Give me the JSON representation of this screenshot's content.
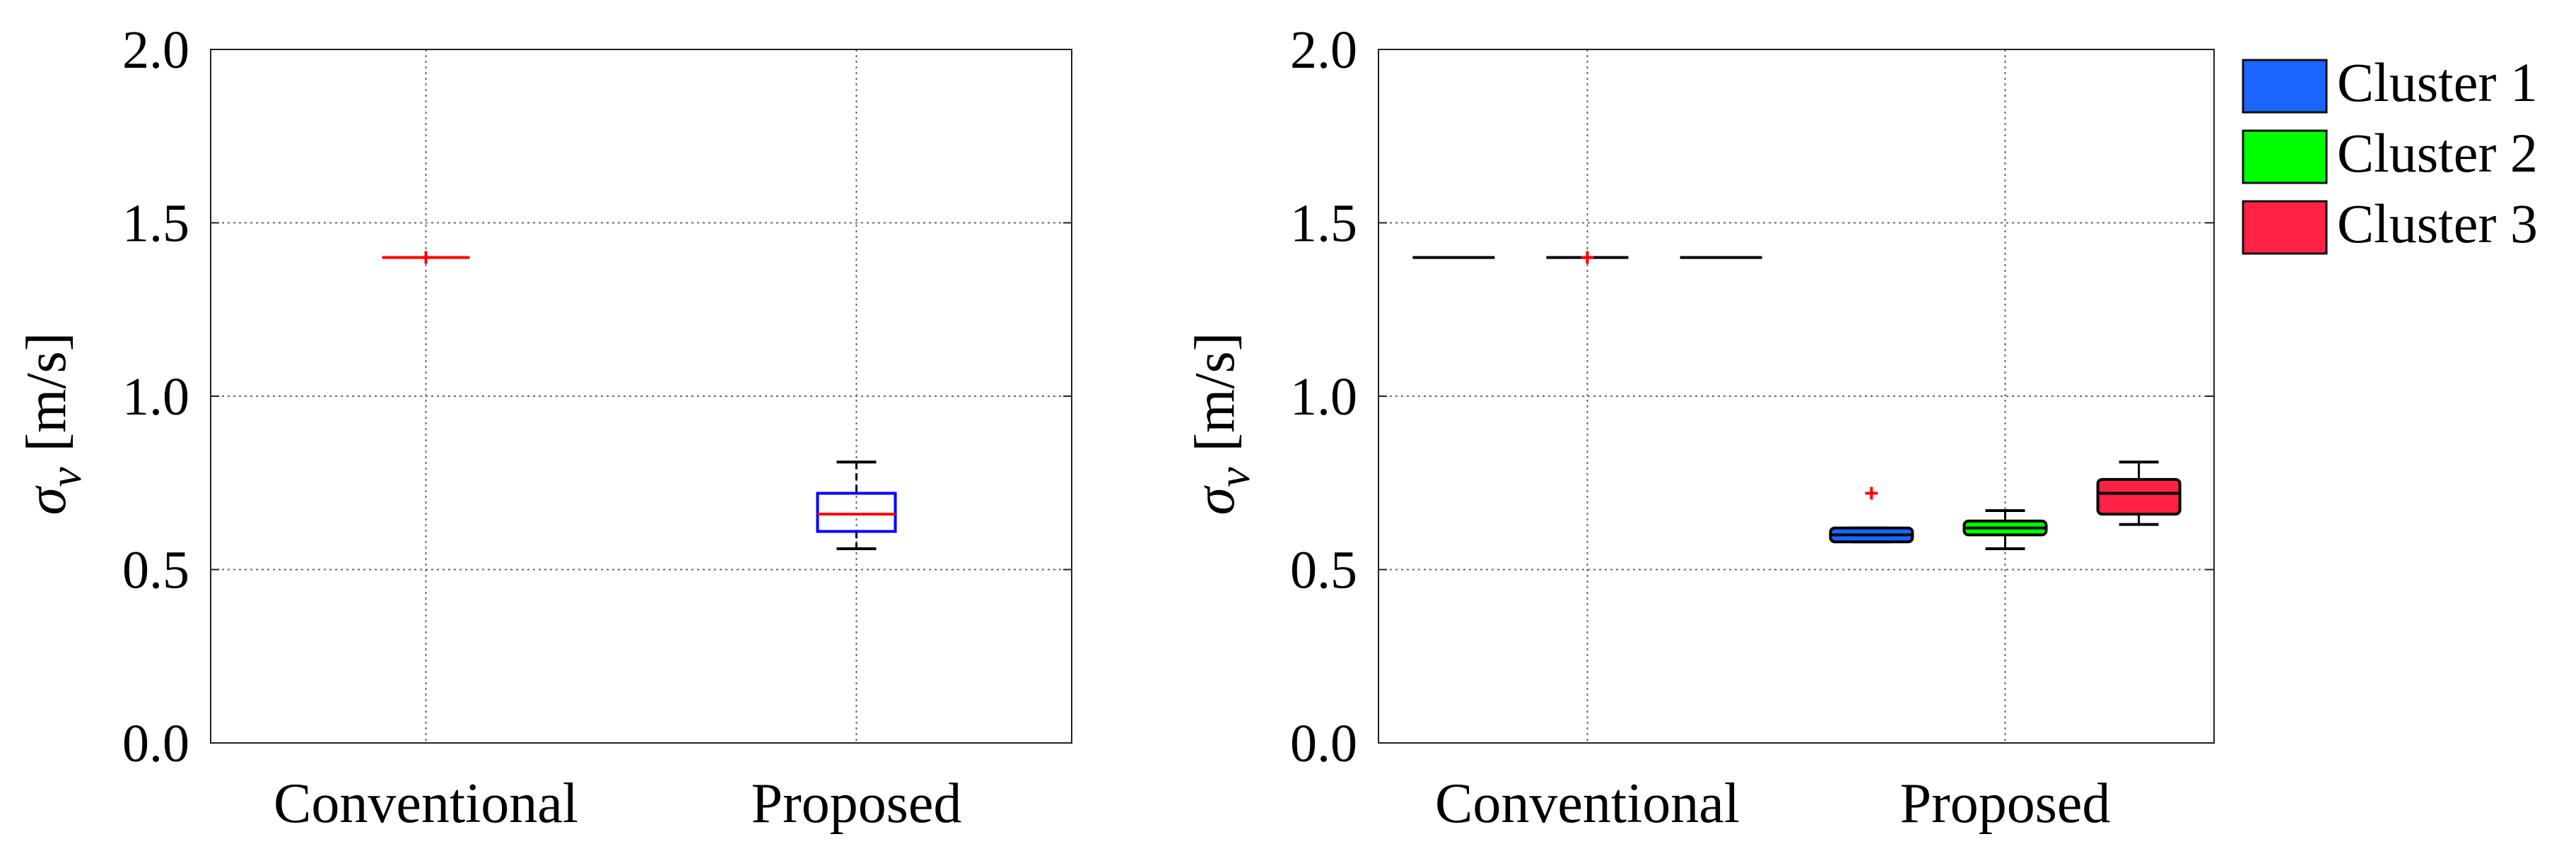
{
  "chart_data": [
    {
      "type": "box",
      "ylabel": {
        "symbol": "σ",
        "subscript": "v",
        "unit": "[m/s]"
      },
      "ylim": [
        0.0,
        2.0
      ],
      "yticks": [
        "0.0",
        "0.5",
        "1.0",
        "1.5",
        "2.0"
      ],
      "grid": true,
      "categories": [
        "Conventional",
        "Proposed"
      ],
      "boxes": [
        {
          "category": "Conventional",
          "min": 1.4,
          "q1": 1.4,
          "median": 1.4,
          "q3": 1.4,
          "max": 1.4,
          "outliers": [
            1.4
          ],
          "box_color": "#ff0000",
          "median_color": "#ff0000",
          "style": "line"
        },
        {
          "category": "Proposed",
          "min": 0.56,
          "q1": 0.61,
          "median": 0.66,
          "q3": 0.72,
          "max": 0.81,
          "outliers": [],
          "box_color": "#0000ff",
          "median_color": "#ff0000",
          "style": "outline"
        }
      ]
    },
    {
      "type": "box",
      "ylabel": {
        "symbol": "σ",
        "subscript": "v",
        "unit": "[m/s]"
      },
      "ylim": [
        0.0,
        2.0
      ],
      "yticks": [
        "0.0",
        "0.5",
        "1.0",
        "1.5",
        "2.0"
      ],
      "grid": true,
      "categories": [
        "Conventional",
        "Proposed"
      ],
      "legend": {
        "position": "outside-right",
        "entries": [
          {
            "name": "Cluster 1",
            "color": "#1a66ff"
          },
          {
            "name": "Cluster 2",
            "color": "#00ff00"
          },
          {
            "name": "Cluster 3",
            "color": "#ff2244"
          }
        ]
      },
      "boxes": [
        {
          "category": "Conventional",
          "series": "Cluster 1",
          "min": 1.4,
          "q1": 1.4,
          "median": 1.4,
          "q3": 1.4,
          "max": 1.4,
          "outliers": [],
          "fill": "#1a66ff",
          "median_color": "#000000"
        },
        {
          "category": "Conventional",
          "series": "Cluster 2",
          "min": 1.4,
          "q1": 1.4,
          "median": 1.4,
          "q3": 1.4,
          "max": 1.4,
          "outliers": [
            1.4
          ],
          "fill": "#00ff00",
          "median_color": "#000000"
        },
        {
          "category": "Conventional",
          "series": "Cluster 3",
          "min": 1.4,
          "q1": 1.4,
          "median": 1.4,
          "q3": 1.4,
          "max": 1.4,
          "outliers": [],
          "fill": "#ff2244",
          "median_color": "#000000"
        },
        {
          "category": "Proposed",
          "series": "Cluster 1",
          "min": 0.58,
          "q1": 0.58,
          "median": 0.6,
          "q3": 0.62,
          "max": 0.62,
          "outliers": [
            0.72
          ],
          "fill": "#1a66ff",
          "median_color": "#000000"
        },
        {
          "category": "Proposed",
          "series": "Cluster 2",
          "min": 0.56,
          "q1": 0.6,
          "median": 0.62,
          "q3": 0.64,
          "max": 0.67,
          "outliers": [],
          "fill": "#00ff00",
          "median_color": "#000000"
        },
        {
          "category": "Proposed",
          "series": "Cluster 3",
          "min": 0.63,
          "q1": 0.66,
          "median": 0.72,
          "q3": 0.76,
          "max": 0.81,
          "outliers": [],
          "fill": "#ff2244",
          "median_color": "#000000"
        }
      ]
    }
  ]
}
